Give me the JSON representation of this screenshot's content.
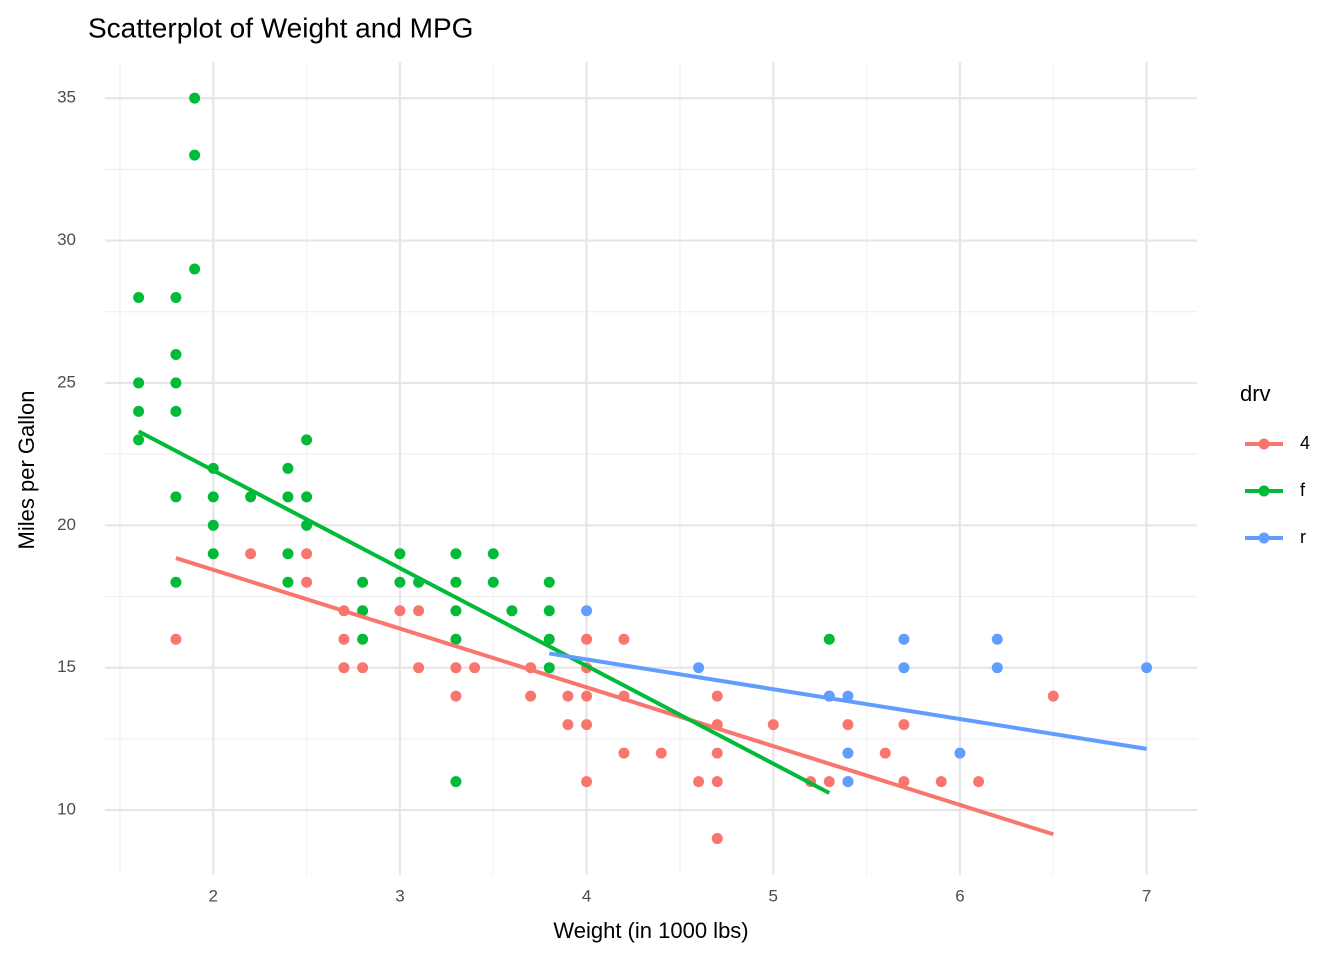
{
  "chart_data": {
    "type": "scatter",
    "title": "Scatterplot of Weight and MPG",
    "x_label": "Weight (in 1000 lbs)",
    "y_label": "Miles per Gallon",
    "legend_title": "drv",
    "legend_position": "right",
    "grid": true,
    "xlim": [
      1.42,
      7.27
    ],
    "ylim": [
      7.72,
      36.27
    ],
    "xticks": [
      2,
      3,
      4,
      5,
      6,
      7
    ],
    "yticks": [
      10,
      15,
      20,
      25,
      30,
      35
    ],
    "x_minor_ticks": [
      1.5,
      2.5,
      3.5,
      4.5,
      5.5,
      6.5
    ],
    "y_minor_ticks": [
      12.5,
      17.5,
      22.5,
      27.5,
      32.5
    ],
    "series": [
      {
        "name": "4",
        "color": "#F8766D",
        "x": [
          1.8,
          2.2,
          2.5,
          2.5,
          2.7,
          2.7,
          2.7,
          2.8,
          3.0,
          3.1,
          3.1,
          3.3,
          3.3,
          3.4,
          3.7,
          3.7,
          3.9,
          3.9,
          4.0,
          4.0,
          4.0,
          4.0,
          4.0,
          4.2,
          4.2,
          4.2,
          4.4,
          4.6,
          4.7,
          4.7,
          4.7,
          4.7,
          4.7,
          5.0,
          5.2,
          5.3,
          5.3,
          5.4,
          5.4,
          5.6,
          5.7,
          5.7,
          5.9,
          6.1,
          6.5
        ],
        "values": [
          16,
          19,
          19,
          18,
          17,
          16,
          15,
          15,
          17,
          17,
          15,
          15,
          14,
          15,
          15,
          14,
          14,
          13,
          16,
          15,
          14,
          13,
          11,
          16,
          14,
          12,
          12,
          11,
          14,
          13,
          12,
          11,
          9,
          13,
          11,
          14,
          11,
          13,
          11,
          12,
          13,
          11,
          11,
          11,
          14
        ],
        "fit_x": [
          1.8,
          6.5
        ],
        "fit_values": [
          18.85,
          9.15
        ]
      },
      {
        "name": "f",
        "color": "#00BA38",
        "x": [
          1.6,
          1.6,
          1.6,
          1.6,
          1.8,
          1.8,
          1.8,
          1.8,
          1.8,
          1.8,
          1.9,
          1.9,
          1.9,
          2.0,
          2.0,
          2.0,
          2.0,
          2.2,
          2.4,
          2.4,
          2.4,
          2.4,
          2.5,
          2.5,
          2.5,
          2.8,
          2.8,
          2.8,
          3.0,
          3.0,
          3.1,
          3.3,
          3.3,
          3.3,
          3.3,
          3.3,
          3.5,
          3.5,
          3.6,
          3.8,
          3.8,
          3.8,
          3.8,
          5.3
        ],
        "values": [
          28,
          25,
          24,
          23,
          28,
          26,
          25,
          24,
          21,
          18,
          35,
          33,
          29,
          22,
          21,
          20,
          19,
          21,
          22,
          21,
          19,
          18,
          23,
          21,
          20,
          18,
          17,
          16,
          19,
          18,
          18,
          19,
          18,
          17,
          16,
          11,
          19,
          18,
          17,
          18,
          17,
          16,
          15,
          16
        ],
        "fit_x": [
          1.6,
          5.3
        ],
        "fit_values": [
          23.3,
          10.6
        ]
      },
      {
        "name": "r",
        "color": "#619CFF",
        "x": [
          4.0,
          4.6,
          5.3,
          5.4,
          5.4,
          5.4,
          5.7,
          5.7,
          6.0,
          6.2,
          6.2,
          7.0
        ],
        "values": [
          17,
          15,
          14,
          14,
          12,
          11,
          16,
          15,
          12,
          16,
          15,
          15
        ],
        "fit_x": [
          3.8,
          7.0
        ],
        "fit_values": [
          15.5,
          12.15
        ]
      }
    ]
  }
}
